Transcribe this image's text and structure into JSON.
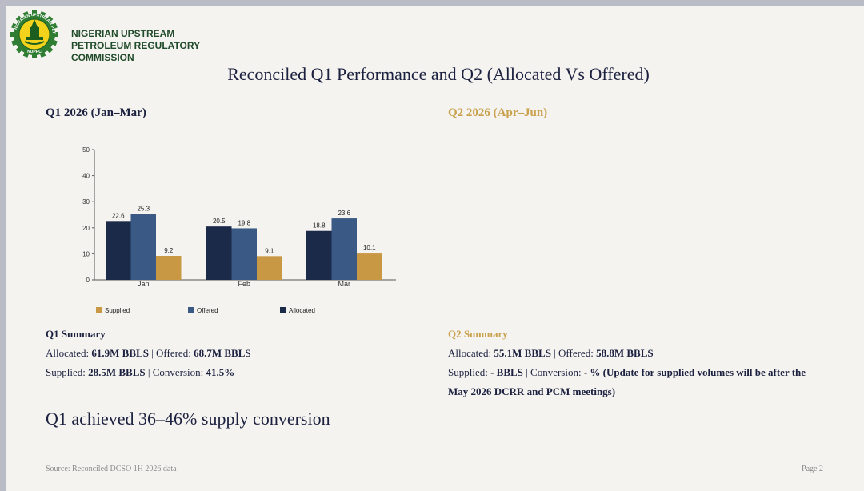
{
  "header": {
    "org_line1": "NIGERIAN UPSTREAM",
    "org_line2": "PETROLEUM REGULATORY",
    "org_line3": "COMMISSION",
    "logo_text": "NUPRC",
    "title": "Reconciled Q1 Performance and Q2 (Allocated Vs Offered)"
  },
  "q1": {
    "heading": "Q1 2026 (Jan–Mar)",
    "summary_heading": "Q1 Summary",
    "allocated_label": "Allocated: ",
    "allocated_value": "61.9M BBLS",
    "offered_label": " | Offered: ",
    "offered_value": "68.7M BBLS",
    "supplied_label": "Supplied: ",
    "supplied_value": "28.5M BBLS",
    "conversion_label": " | Conversion: ",
    "conversion_value": "41.5%"
  },
  "q2": {
    "heading": "Q2 2026 (Apr–Jun)",
    "summary_heading": "Q2 Summary",
    "allocated_label": "Allocated: ",
    "allocated_value": "55.1M BBLS",
    "offered_label": " | Offered: ",
    "offered_value": "58.8M BBLS",
    "supplied_label": "Supplied: ",
    "supplied_value": "-  BBLS",
    "conversion_label": " | Conversion: ",
    "conversion_value": "- % (Update for supplied volumes will be after the",
    "note_line2": "May 2026 DCRR and PCM meetings)"
  },
  "conclusion": "Q1 achieved 36–46% supply conversion",
  "footer": {
    "source": "Source: Reconciled DCSO 1H 2026 data",
    "page": "Page 2"
  },
  "colors": {
    "allocated": "#1c2a4a",
    "offered": "#3a5a85",
    "supplied": "#c99844",
    "title": "#1c2140",
    "q2_accent": "#c9a04b",
    "logo_green": "#2e7d32",
    "logo_yellow": "#f2d21b"
  },
  "chart_data": {
    "type": "bar",
    "categories": [
      "Jan",
      "Feb",
      "Mar"
    ],
    "series": [
      {
        "name": "Allocated",
        "values": [
          22.6,
          20.5,
          18.8
        ]
      },
      {
        "name": "Offered",
        "values": [
          25.3,
          19.8,
          23.6
        ]
      },
      {
        "name": "Supplied",
        "values": [
          9.2,
          9.1,
          10.1
        ]
      }
    ],
    "yticks": [
      0,
      10,
      20,
      30,
      40,
      50
    ],
    "ylim": [
      0,
      50
    ],
    "legend": [
      "Supplied",
      "Offered",
      "Allocated"
    ],
    "legend_position": "bottom",
    "grid": false,
    "data_labels": true,
    "title": "",
    "xlabel": "",
    "ylabel": ""
  }
}
